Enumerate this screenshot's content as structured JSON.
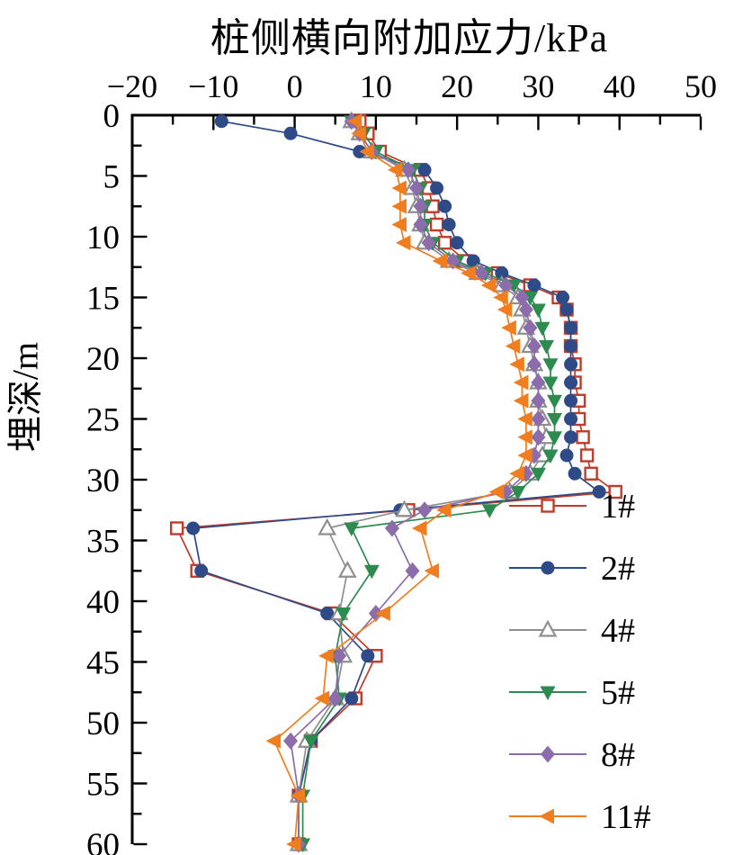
{
  "chart_data": {
    "type": "line",
    "title": "桩侧横向附加应力/kPa",
    "xlabel": "桩侧横向附加应力/kPa",
    "ylabel": "埋深/m",
    "xlim": [
      -20,
      50
    ],
    "ylim": [
      0,
      60
    ],
    "x_ticks": [
      -20,
      -10,
      0,
      10,
      20,
      30,
      40,
      50
    ],
    "x_tick_labels": [
      "−20",
      "−10",
      "0",
      "10",
      "20",
      "30",
      "40",
      "50"
    ],
    "y_ticks": [
      0,
      5,
      10,
      15,
      20,
      25,
      30,
      35,
      40,
      45,
      50,
      55,
      60
    ],
    "grid": "off",
    "legend_position": "lower-right",
    "axis_note": "x axis on top, depth increases downward",
    "series": [
      {
        "name": "1#",
        "marker": "square-open",
        "color": "#c13b28",
        "points": [
          [
            8,
            0.5
          ],
          [
            9,
            1.5
          ],
          [
            10.5,
            3
          ],
          [
            15.5,
            4.5
          ],
          [
            16.5,
            6
          ],
          [
            17,
            7.5
          ],
          [
            17.5,
            9
          ],
          [
            18.5,
            10.5
          ],
          [
            21,
            12
          ],
          [
            25,
            13
          ],
          [
            29,
            14
          ],
          [
            32.5,
            15
          ],
          [
            33.5,
            16
          ],
          [
            34,
            17.5
          ],
          [
            34,
            19
          ],
          [
            34.5,
            20.5
          ],
          [
            34.5,
            22
          ],
          [
            35,
            23.5
          ],
          [
            35,
            25
          ],
          [
            35.5,
            26.5
          ],
          [
            36,
            28
          ],
          [
            36.5,
            29.5
          ],
          [
            39.5,
            31
          ],
          [
            14,
            32.5
          ],
          [
            -14.5,
            34
          ],
          [
            -12,
            37.5
          ],
          [
            4.5,
            41
          ],
          [
            10,
            44.5
          ],
          [
            7.5,
            48
          ],
          [
            2,
            51.5
          ],
          [
            0.5,
            56
          ],
          [
            0.5,
            60
          ]
        ]
      },
      {
        "name": "2#",
        "marker": "circle",
        "color": "#2e4a87",
        "points": [
          [
            -9,
            0.5
          ],
          [
            -0.5,
            1.5
          ],
          [
            8,
            3
          ],
          [
            16,
            4.5
          ],
          [
            17.5,
            6
          ],
          [
            18.5,
            7.5
          ],
          [
            19,
            9
          ],
          [
            20,
            10.5
          ],
          [
            22,
            12
          ],
          [
            25.5,
            13
          ],
          [
            29.5,
            14
          ],
          [
            33,
            15
          ],
          [
            33.5,
            16
          ],
          [
            34,
            17.5
          ],
          [
            34,
            19
          ],
          [
            34,
            20.5
          ],
          [
            34,
            22
          ],
          [
            34,
            23.5
          ],
          [
            34,
            25
          ],
          [
            34,
            26.5
          ],
          [
            33.5,
            28
          ],
          [
            34.5,
            29.5
          ],
          [
            37.5,
            31
          ],
          [
            13,
            32.5
          ],
          [
            -12.5,
            34
          ],
          [
            -11.5,
            37.5
          ],
          [
            4,
            41
          ],
          [
            9,
            44.5
          ],
          [
            7,
            48
          ],
          [
            2,
            51.5
          ],
          [
            0.5,
            56
          ],
          [
            0.5,
            60
          ]
        ]
      },
      {
        "name": "4#",
        "marker": "triangle-up-open",
        "color": "#8f8f8f",
        "points": [
          [
            7,
            0.5
          ],
          [
            8,
            1.5
          ],
          [
            9.5,
            3
          ],
          [
            13.5,
            4.5
          ],
          [
            14.5,
            6
          ],
          [
            15,
            7.5
          ],
          [
            15.5,
            9
          ],
          [
            16,
            10.5
          ],
          [
            19,
            12
          ],
          [
            22.5,
            13
          ],
          [
            25.5,
            14
          ],
          [
            27.5,
            15
          ],
          [
            28,
            16
          ],
          [
            28.5,
            17.5
          ],
          [
            29,
            19
          ],
          [
            29.5,
            20.5
          ],
          [
            30,
            22
          ],
          [
            30,
            23.5
          ],
          [
            30.5,
            25
          ],
          [
            31,
            26.5
          ],
          [
            30.5,
            28
          ],
          [
            29,
            29.5
          ],
          [
            26.5,
            31
          ],
          [
            13.5,
            32.5
          ],
          [
            4,
            34
          ],
          [
            6.5,
            37.5
          ],
          [
            5.5,
            41
          ],
          [
            6,
            44.5
          ],
          [
            5,
            48
          ],
          [
            1.5,
            51.5
          ],
          [
            0.5,
            56
          ],
          [
            0.5,
            60
          ]
        ]
      },
      {
        "name": "5#",
        "marker": "triangle-down",
        "color": "#2e8b4f",
        "points": [
          [
            7,
            0.5
          ],
          [
            8.5,
            1.5
          ],
          [
            10,
            3
          ],
          [
            14.5,
            4.5
          ],
          [
            15.5,
            6
          ],
          [
            16,
            7.5
          ],
          [
            16,
            9
          ],
          [
            17,
            10.5
          ],
          [
            20,
            12
          ],
          [
            23.5,
            13
          ],
          [
            27,
            14
          ],
          [
            29,
            15
          ],
          [
            30,
            16
          ],
          [
            30.5,
            17.5
          ],
          [
            31,
            19
          ],
          [
            31.5,
            20.5
          ],
          [
            31.5,
            22
          ],
          [
            32,
            23.5
          ],
          [
            32,
            25
          ],
          [
            32,
            26.5
          ],
          [
            31.5,
            28
          ],
          [
            30,
            29.5
          ],
          [
            27.5,
            31
          ],
          [
            24,
            32.5
          ],
          [
            7,
            34
          ],
          [
            9.5,
            37.5
          ],
          [
            6,
            41
          ],
          [
            5,
            44.5
          ],
          [
            5.5,
            48
          ],
          [
            2,
            51.5
          ],
          [
            1,
            56
          ],
          [
            1,
            60
          ]
        ]
      },
      {
        "name": "8#",
        "marker": "diamond",
        "color": "#8d6cab",
        "points": [
          [
            7,
            0.5
          ],
          [
            8,
            1.5
          ],
          [
            9.5,
            3
          ],
          [
            14,
            4.5
          ],
          [
            15,
            6
          ],
          [
            15.5,
            7.5
          ],
          [
            15.5,
            9
          ],
          [
            16.5,
            10.5
          ],
          [
            19.5,
            12
          ],
          [
            23,
            13
          ],
          [
            26,
            14
          ],
          [
            28,
            15
          ],
          [
            28.5,
            16
          ],
          [
            29,
            17.5
          ],
          [
            29.5,
            19
          ],
          [
            29.5,
            20.5
          ],
          [
            30,
            22
          ],
          [
            30,
            23.5
          ],
          [
            30,
            25
          ],
          [
            30,
            26.5
          ],
          [
            29.5,
            28
          ],
          [
            28.5,
            29.5
          ],
          [
            26,
            31
          ],
          [
            16,
            32.5
          ],
          [
            12,
            34
          ],
          [
            14.5,
            37.5
          ],
          [
            10,
            41
          ],
          [
            5.5,
            44.5
          ],
          [
            5,
            48
          ],
          [
            -0.5,
            51.5
          ],
          [
            0.5,
            56
          ],
          [
            0.5,
            60
          ]
        ]
      },
      {
        "name": "11#",
        "marker": "triangle-left",
        "color": "#f07d1e",
        "points": [
          [
            7.5,
            0.5
          ],
          [
            8,
            1.5
          ],
          [
            9,
            3
          ],
          [
            12.5,
            4.5
          ],
          [
            13,
            6
          ],
          [
            13,
            7.5
          ],
          [
            13,
            9
          ],
          [
            13.5,
            10.5
          ],
          [
            18,
            12
          ],
          [
            21.5,
            13
          ],
          [
            24,
            14
          ],
          [
            25.5,
            15
          ],
          [
            26,
            16
          ],
          [
            26.5,
            17.5
          ],
          [
            27,
            19
          ],
          [
            27.5,
            20.5
          ],
          [
            28,
            22
          ],
          [
            28,
            23.5
          ],
          [
            28.5,
            25
          ],
          [
            28.5,
            26.5
          ],
          [
            28.5,
            28
          ],
          [
            27.5,
            29.5
          ],
          [
            25,
            31
          ],
          [
            18.5,
            32.5
          ],
          [
            15.5,
            34
          ],
          [
            17,
            37.5
          ],
          [
            11,
            41
          ],
          [
            4,
            44.5
          ],
          [
            3.5,
            48
          ],
          [
            -2.5,
            51.5
          ],
          [
            0.5,
            56
          ],
          [
            0,
            60
          ]
        ]
      }
    ]
  }
}
